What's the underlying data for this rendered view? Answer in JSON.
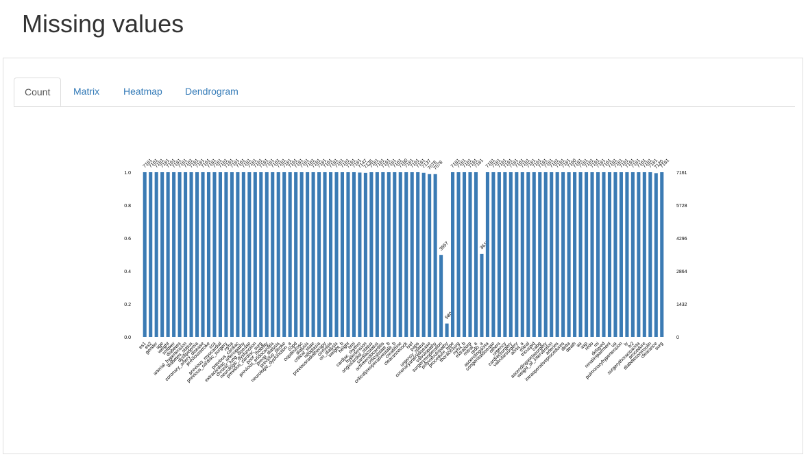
{
  "page": {
    "title": "Missing values"
  },
  "tabs": [
    {
      "label": "Count",
      "active": true
    },
    {
      "label": "Matrix",
      "active": false
    },
    {
      "label": "Heatmap",
      "active": false
    },
    {
      "label": "Dendrogram",
      "active": false
    }
  ],
  "colors": {
    "bar": "#3b7bb4",
    "tab_link": "#337ab7",
    "border": "#dddddd"
  },
  "chart_data": {
    "type": "bar",
    "title": "",
    "ylim": [
      0,
      1.0
    ],
    "yticks_left": [
      "1.0",
      "0.8",
      "0.6",
      "0.4",
      "0.2",
      "0.0"
    ],
    "yticks_right": [
      "7161",
      "5728",
      "4296",
      "2864",
      "1432",
      "0"
    ],
    "total": 7161,
    "categories": [
      "es1",
      "es2",
      "gender",
      "age",
      "weight",
      "smoker",
      "diabetes",
      "arterial_hypertension",
      "diabetes_status",
      "dyslipidemia",
      "coronary_artery_disease",
      "previousstroke",
      "ccs",
      "previous_myocardial",
      "previous_cardiac_surgery",
      "nyha",
      "previous_cardiac",
      "extracardiac_arteriopathy",
      "chronic_lung_disease",
      "neurologic_dysfunction",
      "previous_cardiac_surg",
      "poor_mobility",
      "previous_endocarditis",
      "preop_dialysis",
      "previous_stroke",
      "neurologic_dysfunction_a",
      "copd",
      "copdeurosc",
      "dialysis",
      "critical_state",
      "neoplasia",
      "previousradiotherapy",
      "cirrhosis",
      "on_dialysis",
      "weight_b",
      "height",
      "bmi",
      "cardiac_rhythm",
      "hypertension",
      "angiocardial_status",
      "cardiacstatus",
      "activeendocarditis",
      "criticalstate_b",
      "criticalpreoperativestate_b",
      "creatinine",
      "clearancecock",
      "lvef",
      "paps",
      "urgency_status",
      "coronaryarterydisease",
      "valvulopathy",
      "surgeryreoperation",
      "polyvalvulopathy",
      "procedure_type",
      "thoracicsurg",
      "nyha_b",
      "extracorp",
      "mitral_a",
      "redo_a",
      "ascendingaorta",
      "congenitaldisease",
      "others",
      "urgency",
      "cardiacsurgery",
      "valvularsurgery",
      "aorta_a",
      "mitral",
      "tricuspid",
      "cabg",
      "ascendingaortasurgery",
      "weight_of_intervention",
      "arteries",
      "intraoperativeprocedures",
      "delta",
      "death",
      "aa",
      "asp",
      "redo",
      "mi",
      "delayed",
      "renalimpairment",
      "ua",
      "pulmonaryhypertension",
      "lv",
      "lv2",
      "surgerythoracicaorta",
      "procedure",
      "diabetesoninsulin",
      "clearance",
      "surg"
    ],
    "counts": [
      7161,
      7161,
      7161,
      7161,
      7161,
      7161,
      7161,
      7161,
      7161,
      7161,
      7161,
      7161,
      7161,
      7161,
      7161,
      7161,
      7161,
      7161,
      7161,
      7161,
      7161,
      7161,
      7161,
      7161,
      7161,
      7161,
      7161,
      7161,
      7161,
      7161,
      7161,
      7161,
      7161,
      7161,
      7161,
      7161,
      7161,
      7147,
      7135,
      7161,
      7161,
      7161,
      7161,
      7161,
      7160,
      7161,
      7161,
      7161,
      7137,
      7078,
      7078,
      3557,
      580,
      7161,
      7161,
      7161,
      7161,
      7161,
      3613,
      7161,
      7161,
      7161,
      7161,
      7161,
      7161,
      7161,
      7161,
      7161,
      7161,
      7161,
      7161,
      7161,
      7161,
      7160,
      7161,
      7161,
      7161,
      7161,
      7161,
      7161,
      7161,
      7161,
      7161,
      7161,
      7161,
      7161,
      7161,
      7161,
      7120,
      7161
    ]
  }
}
